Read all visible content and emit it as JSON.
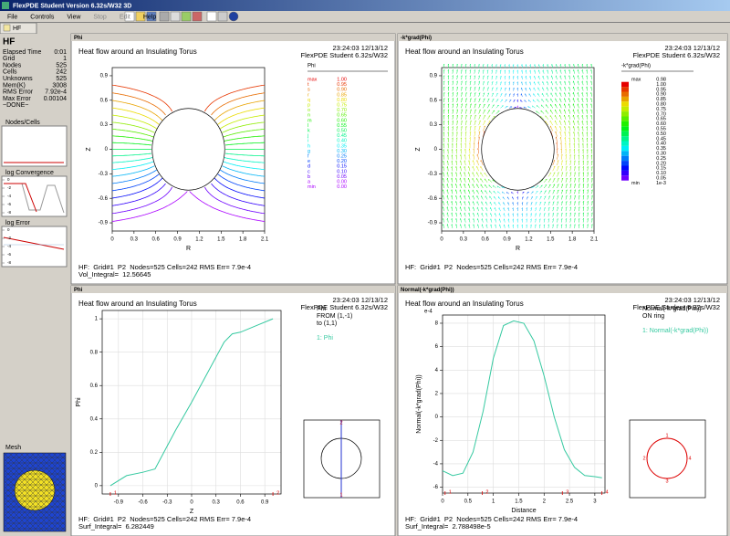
{
  "window": {
    "title": "FlexPDE Student Version 6.32s/W32 3D"
  },
  "menu": [
    "File",
    "Controls",
    "View",
    "Stop",
    "Edit",
    "Help"
  ],
  "tab": "HF",
  "sidebar": {
    "title": "HF",
    "stats": [
      [
        "Elapsed Time",
        "0:01"
      ],
      [
        "Grid",
        "1"
      ],
      [
        "Nodes",
        "525"
      ],
      [
        "Cells",
        "242"
      ],
      [
        "Unknowns",
        "525"
      ],
      [
        "Mem(K)",
        "3008"
      ],
      [
        "RMS Error",
        "7.92e-4"
      ],
      [
        "Max Error",
        "0.00104"
      ],
      [
        "~DONE~",
        ""
      ]
    ],
    "nodes_cells": "Nodes/Cells",
    "convergence": "log Convergence",
    "convergence_ticks": [
      0,
      -2,
      -4,
      -6,
      -8
    ],
    "error": "log Error",
    "error_ticks": [
      0,
      -2,
      -4,
      -6,
      -8
    ],
    "mesh": "Mesh"
  },
  "plots": [
    {
      "panel": "Phi",
      "type": "contour",
      "title": "Heat flow around an Insulating Torus",
      "timestamp": "23:24:03 12/13/12",
      "version": "FlexPDE Student 6.32s/W32",
      "footer": "HF:  Grid#1  P2  Nodes=525 Cells=242 RMS Err= 7.9e-4",
      "integral": "Vol_Integral=  12.56645",
      "xlabel": "R",
      "ylabel": "Z",
      "xlim": [
        0,
        2.1
      ],
      "xticks": [
        0,
        0.3,
        0.6,
        0.9,
        1.2,
        1.5,
        1.8,
        2.1
      ],
      "ylim": [
        -1,
        1
      ],
      "yticks": [
        -0.9,
        -0.6,
        -0.3,
        0,
        0.3,
        0.6,
        0.9
      ],
      "legend_title": "Phi",
      "legend": {
        "keys": [
          "max",
          "t",
          "s",
          "r",
          "q",
          "p",
          "o",
          "n",
          "m",
          "l",
          "k",
          "j",
          "i",
          "h",
          "g",
          "f",
          "e",
          "d",
          "c",
          "b",
          "a",
          "min"
        ],
        "values": [
          1,
          0.95,
          0.9,
          0.85,
          0.8,
          0.75,
          0.7,
          0.65,
          0.6,
          0.55,
          0.5,
          0.45,
          0.4,
          0.35,
          0.3,
          0.25,
          0.2,
          0.15,
          0.1,
          0.05,
          0,
          0
        ],
        "value_labels": [
          "1.00",
          "0.95",
          "0.90",
          "0.85",
          "0.80",
          "0.75",
          "0.70",
          "0.65",
          "0.60",
          "0.55",
          "0.50",
          "0.45",
          "0.40",
          "0.35",
          "0.30",
          "0.25",
          "0.20",
          "0.15",
          "0.10",
          "0.05",
          "0.00",
          "0.00"
        ]
      }
    },
    {
      "panel": "-k*grad(Phi)",
      "type": "vector",
      "title": "Heat flow around an Insulating Torus",
      "timestamp": "23:24:03 12/13/12",
      "version": "FlexPDE Student 6.32s/W32",
      "footer": "HF:  Grid#1  P2  Nodes=525 Cells=242 RMS Err= 7.9e-4",
      "xlabel": "R",
      "ylabel": "Z",
      "xlim": [
        0,
        2.1
      ],
      "xticks": [
        0,
        0.3,
        0.6,
        0.9,
        1.2,
        1.5,
        1.8,
        2.1
      ],
      "ylim": [
        -1,
        1
      ],
      "yticks": [
        -0.9,
        -0.6,
        -0.3,
        0,
        0.3,
        0.6,
        0.9
      ],
      "legend_title": "-k*grad(Phi)",
      "legend": {
        "max_label": "max",
        "min_label": "min",
        "values": [
          0.98,
          1,
          0.95,
          0.9,
          0.85,
          0.8,
          0.75,
          0.7,
          0.65,
          0.6,
          0.55,
          0.5,
          0.45,
          0.4,
          0.35,
          0.3,
          0.25,
          0.2,
          0.15,
          0.1,
          0.05,
          0.001
        ],
        "value_labels": [
          "0.98",
          "1.00",
          "0.95",
          "0.90",
          "0.85",
          "0.80",
          "0.75",
          "0.70",
          "0.65",
          "0.60",
          "0.55",
          "0.50",
          "0.45",
          "0.40",
          "0.35",
          "0.30",
          "0.25",
          "0.20",
          "0.15",
          "0.10",
          "0.05",
          "1e-3"
        ]
      }
    },
    {
      "panel": "Phi",
      "type": "line",
      "title": "Heat flow around an Insulating Torus",
      "timestamp": "23:24:03 12/13/12",
      "version": "FlexPDE Student 6.32s/W32",
      "footer": "HF:  Grid#1  P2  Nodes=525 Cells=242 RMS Err= 7.9e-4",
      "integral": "Surf_Integral=  6.282449",
      "xlabel": "Z",
      "ylabel": "Phi",
      "xlim": [
        -1.1,
        1.1
      ],
      "xticks": [
        -0.9,
        -0.6,
        -0.3,
        0,
        0.3,
        0.6,
        0.9
      ],
      "ylim": [
        -0.05,
        1.05
      ],
      "yticks": [
        0,
        0.2,
        0.4,
        0.6,
        0.8,
        1
      ],
      "grid": true,
      "legend_lines": [
        "Phi",
        "FROM (1,-1)",
        "to (1,1)"
      ],
      "series": [
        {
          "name": "1: Phi",
          "color": "#35c9a0",
          "x": [
            -1,
            -0.8,
            -0.6,
            -0.45,
            -0.2,
            0,
            0.2,
            0.4,
            0.5,
            0.6,
            0.8,
            1
          ],
          "values": [
            0,
            0.06,
            0.08,
            0.1,
            0.33,
            0.5,
            0.68,
            0.86,
            0.91,
            0.92,
            0.96,
            1
          ]
        }
      ],
      "markers": {
        "labels": [
          "1",
          "2"
        ],
        "x": [
          -1,
          1
        ]
      },
      "inset_labels": [
        "2",
        "1"
      ]
    },
    {
      "panel": "Normal(-k*grad(Phi))",
      "type": "line",
      "title": "Heat flow around an Insulating Torus",
      "timestamp": "23:24:03 12/13/12",
      "version": "FlexPDE Student 6.32s/W32",
      "footer": "HF:  Grid#1  P2  Nodes=525 Cells=242 RMS Err= 7.9e-4",
      "integral": "Surf_Integral=  2.788498e-5",
      "xlabel": "Distance",
      "ylabel": "Normal(-k*grad(Phi))",
      "yunit": "e-4",
      "xlim": [
        0,
        3.2
      ],
      "xticks": [
        0,
        0.5,
        1,
        1.5,
        2,
        2.5,
        3
      ],
      "ylim": [
        -6.5,
        8.7
      ],
      "yticks": [
        -6,
        -4,
        -2,
        0,
        2,
        4,
        6,
        8
      ],
      "grid": true,
      "legend_lines": [
        "Normal(-k*grad(Phi))",
        "ON ring"
      ],
      "series": [
        {
          "name": "1: Normal(-k*grad(Phi))",
          "color": "#35c9a0",
          "x": [
            0,
            0.2,
            0.4,
            0.6,
            0.8,
            1,
            1.2,
            1.4,
            1.6,
            1.8,
            2,
            2.2,
            2.4,
            2.6,
            2.8,
            3,
            3.14
          ],
          "values": [
            -4.6,
            -5,
            -4.8,
            -3,
            0.5,
            5,
            7.8,
            8.2,
            8,
            6.5,
            3.5,
            0,
            -2.8,
            -4.3,
            -5,
            -5.1,
            -5.2
          ]
        }
      ],
      "markers": {
        "labels": [
          "1",
          "2",
          "3",
          "4"
        ],
        "x": [
          0.05,
          0.78,
          2.36,
          3.14
        ]
      },
      "inset_labels": [
        "1",
        "2",
        "3",
        "4"
      ]
    }
  ]
}
